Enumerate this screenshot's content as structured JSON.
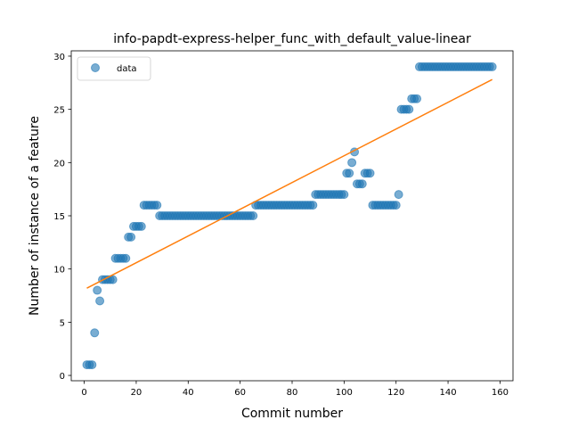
{
  "chart_data": {
    "type": "scatter",
    "title": "info-papdt-express-helper_func_with_default_value-linear",
    "xlabel": "Commit number",
    "ylabel": "Number of instance of a feature",
    "xlim": [
      -5,
      165
    ],
    "ylim": [
      -0.5,
      30.5
    ],
    "xticks": [
      0,
      20,
      40,
      60,
      80,
      100,
      120,
      140,
      160
    ],
    "yticks": [
      0,
      5,
      10,
      15,
      20,
      25,
      30
    ],
    "legend": {
      "position": "top-left",
      "entries": [
        "data"
      ]
    },
    "colors": {
      "data": "#1f77b4",
      "fit": "#ff7f0e"
    },
    "series": [
      {
        "name": "data",
        "kind": "scatter",
        "x": [
          1,
          2,
          3,
          4,
          5,
          6,
          7,
          8,
          9,
          10,
          11,
          12,
          13,
          14,
          15,
          16,
          17,
          18,
          19,
          20,
          21,
          22,
          23,
          24,
          25,
          26,
          27,
          28,
          29,
          30,
          31,
          32,
          33,
          34,
          35,
          36,
          37,
          38,
          39,
          40,
          41,
          42,
          43,
          44,
          45,
          46,
          47,
          48,
          49,
          50,
          51,
          52,
          53,
          54,
          55,
          56,
          57,
          58,
          59,
          60,
          61,
          62,
          63,
          64,
          65,
          66,
          67,
          68,
          69,
          70,
          71,
          72,
          73,
          74,
          75,
          76,
          77,
          78,
          79,
          80,
          81,
          82,
          83,
          84,
          85,
          86,
          87,
          88,
          89,
          90,
          91,
          92,
          93,
          94,
          95,
          96,
          97,
          98,
          99,
          100,
          101,
          102,
          103,
          104,
          105,
          106,
          107,
          108,
          109,
          110,
          111,
          112,
          113,
          114,
          115,
          116,
          117,
          118,
          119,
          120,
          121,
          122,
          123,
          124,
          125,
          126,
          127,
          128,
          129,
          130,
          131,
          132,
          133,
          134,
          135,
          136,
          137,
          138,
          139,
          140,
          141,
          142,
          143,
          144,
          145,
          146,
          147,
          148,
          149,
          150,
          151,
          152,
          153,
          154,
          155,
          156,
          157
        ],
        "y": [
          1,
          1,
          1,
          4,
          8,
          7,
          9,
          9,
          9,
          9,
          9,
          11,
          11,
          11,
          11,
          11,
          13,
          13,
          14,
          14,
          14,
          14,
          16,
          16,
          16,
          16,
          16,
          16,
          15,
          15,
          15,
          15,
          15,
          15,
          15,
          15,
          15,
          15,
          15,
          15,
          15,
          15,
          15,
          15,
          15,
          15,
          15,
          15,
          15,
          15,
          15,
          15,
          15,
          15,
          15,
          15,
          15,
          15,
          15,
          15,
          15,
          15,
          15,
          15,
          15,
          16,
          16,
          16,
          16,
          16,
          16,
          16,
          16,
          16,
          16,
          16,
          16,
          16,
          16,
          16,
          16,
          16,
          16,
          16,
          16,
          16,
          16,
          16,
          17,
          17,
          17,
          17,
          17,
          17,
          17,
          17,
          17,
          17,
          17,
          17,
          19,
          19,
          20,
          21,
          18,
          18,
          18,
          19,
          19,
          19,
          16,
          16,
          16,
          16,
          16,
          16,
          16,
          16,
          16,
          16,
          17,
          25,
          25,
          25,
          25,
          26,
          26,
          26,
          29,
          29,
          29,
          29,
          29,
          29,
          29,
          29,
          29,
          29,
          29,
          29,
          29,
          29,
          29,
          29,
          29,
          29,
          29,
          29,
          29,
          29,
          29,
          29,
          29,
          29,
          29,
          29,
          29
        ]
      },
      {
        "name": "",
        "kind": "line",
        "x": [
          1,
          157
        ],
        "y": [
          8.2,
          27.8
        ]
      }
    ]
  }
}
